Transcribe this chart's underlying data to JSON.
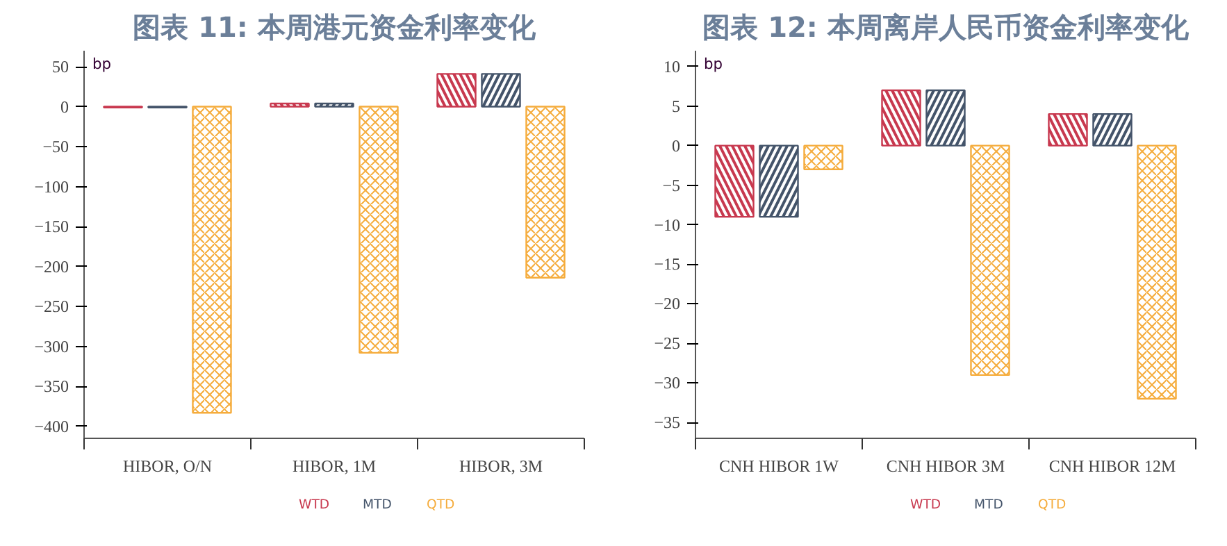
{
  "chart_data": [
    {
      "type": "bar",
      "title": "图表 11: 本周港元资金利率变化",
      "ylabel": "bp",
      "categories": [
        "HIBOR, O/N",
        "HIBOR, 1M",
        "HIBOR, 3M"
      ],
      "series": [
        {
          "name": "WTD",
          "color": "#c8394f",
          "values": [
            -1,
            4,
            41
          ]
        },
        {
          "name": "MTD",
          "color": "#44546a",
          "values": [
            -1,
            4,
            41
          ]
        },
        {
          "name": "QTD",
          "color": "#f5ac3c",
          "values": [
            -383,
            -308,
            -214
          ]
        }
      ],
      "ylim": [
        -415,
        70
      ],
      "yticks": [
        50,
        0,
        -50,
        -100,
        -150,
        -200,
        -250,
        -300,
        -350,
        -400
      ],
      "grid": false,
      "legend": "bottom"
    },
    {
      "type": "bar",
      "title": "图表 12: 本周离岸人民币资金利率变化",
      "ylabel": "bp",
      "categories": [
        "CNH HIBOR 1W",
        "CNH HIBOR 3M",
        "CNH HIBOR 12M"
      ],
      "series": [
        {
          "name": "WTD",
          "color": "#c8394f",
          "values": [
            -9,
            7,
            4
          ]
        },
        {
          "name": "MTD",
          "color": "#44546a",
          "values": [
            -9,
            7,
            4
          ]
        },
        {
          "name": "QTD",
          "color": "#f5ac3c",
          "values": [
            -3,
            -29,
            -32
          ]
        }
      ],
      "ylim": [
        -37,
        12
      ],
      "yticks": [
        10,
        5,
        0,
        -5,
        -10,
        -15,
        -20,
        -25,
        -30,
        -35
      ],
      "grid": false,
      "legend": "bottom"
    }
  ]
}
